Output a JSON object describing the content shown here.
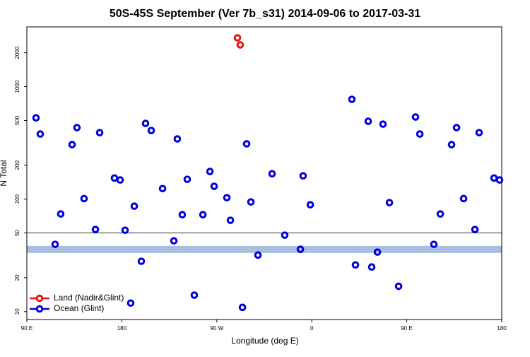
{
  "chart_data": {
    "type": "scatter",
    "title": "50S-45S September (Ver 7b_s31)   2014-09-06 to 2017-03-31",
    "xlabel": "Longitude (deg E)",
    "ylabel": "N Total",
    "xlim": [
      90,
      540
    ],
    "ylim": [
      8.5,
      3400
    ],
    "log_y": true,
    "xticks": [
      {
        "value": 90,
        "label": "90 E"
      },
      180,
      {
        "value": 270,
        "label": "90 W"
      },
      {
        "value": 360,
        "label": "0"
      },
      {
        "value": 450,
        "label": "90 E"
      },
      {
        "value": 540,
        "label": "180"
      }
    ],
    "yticks": [
      10,
      20,
      50,
      100,
      200,
      500,
      1000,
      2000
    ],
    "hline": 50,
    "hline_color": "#333333",
    "band": [
      33.2,
      38.4
    ],
    "band_color": "#a8bfdd",
    "legend": "bottom-left",
    "series": [
      {
        "name": "Land (Nadir&Glint)",
        "color": "#ee1111",
        "x": [
          289.6,
          292.2
        ],
        "values": [
          2716,
          2350
        ]
      },
      {
        "name": "Ocean (Glint)",
        "color": "#0000dd",
        "x": [
          98.7,
          102.7,
          116.8,
          122.1,
          132.9,
          137.5,
          144.2,
          155,
          159,
          173,
          178.4,
          183.1,
          188.4,
          191.8,
          198.5,
          202.5,
          207.9,
          218.6,
          229.3,
          232.6,
          237.3,
          242,
          248.7,
          256.8,
          263.5,
          267.5,
          279.5,
          282.9,
          294.3,
          298.3,
          302.3,
          309,
          322.4,
          334.4,
          349.2,
          351.8,
          358.6,
          398,
          401.4,
          413.5,
          416.8,
          422.2,
          427.5,
          433.6,
          442.3,
          458.3,
          462.4,
          475.7,
          481.8,
          492.5,
          497.2,
          503.9,
          514.6,
          518.6,
          532.7,
          538
        ],
        "values": [
          528,
          379,
          39.6,
          73.8,
          305,
          432,
          101,
          53.7,
          390,
          154,
          148,
          52.9,
          11.9,
          86.5,
          28,
          471,
          407,
          124,
          42.6,
          343,
          72.7,
          150,
          14,
          72.7,
          176,
          130,
          103,
          64.8,
          10.9,
          310,
          94.4,
          31.8,
          168,
          47.8,
          35.8,
          161,
          89.1,
          771,
          26,
          492,
          24.9,
          33.8,
          464,
          93,
          16.8,
          537,
          379,
          39.6,
          73.8,
          305,
          432,
          101,
          53.7,
          390,
          154,
          148
        ]
      }
    ]
  }
}
